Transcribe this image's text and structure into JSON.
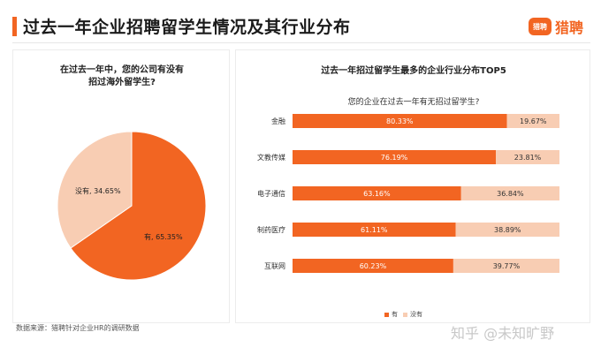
{
  "header": {
    "title": "过去一年企业招聘留学生情况及其行业分布",
    "logo_badge": "猎聘",
    "logo_text": "猎聘"
  },
  "colors": {
    "yes": "#f26522",
    "no": "#f8cdb3",
    "accent": "#f26522"
  },
  "chart_data": [
    {
      "type": "pie",
      "title": [
        "在过去一年中，您的公司有没有",
        "招过海外留学生?"
      ],
      "slices": [
        {
          "label": "有",
          "value": 65.35,
          "text": "有, 65.35%"
        },
        {
          "label": "没有",
          "value": 34.65,
          "text": "没有, 34.65%"
        }
      ]
    },
    {
      "type": "bar",
      "orientation": "horizontal",
      "stacked": true,
      "title": "过去一年招过留学生最多的企业行业分布TOP5",
      "subtitle": "您的企业在过去一年有无招过留学生?",
      "categories": [
        "金融",
        "文教传媒",
        "电子通信",
        "制药医疗",
        "互联网"
      ],
      "series": [
        {
          "name": "有",
          "values": [
            80.33,
            76.19,
            63.16,
            61.11,
            60.23
          ],
          "labels": [
            "80.33%",
            "76.19%",
            "63.16%",
            "61.11%",
            "60.23%"
          ]
        },
        {
          "name": "没有",
          "values": [
            19.67,
            23.81,
            36.84,
            38.89,
            39.77
          ],
          "labels": [
            "19.67%",
            "23.81%",
            "36.84%",
            "38.89%",
            "39.77%"
          ]
        }
      ],
      "xlim": [
        0,
        100
      ],
      "legend_position": "bottom"
    }
  ],
  "footer": {
    "source": "数据来源：猎聘针对企业HR的调研数据"
  },
  "watermark": "知乎 @未知旷野"
}
